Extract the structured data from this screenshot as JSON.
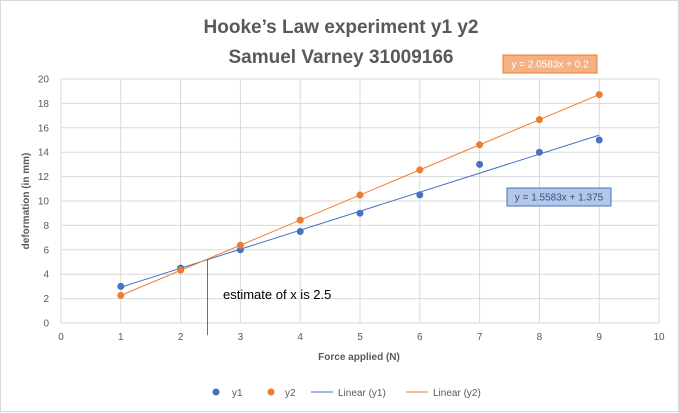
{
  "chart_data": {
    "type": "scatter",
    "title_lines": [
      "Hooke’s Law experiment y1 y2",
      "Samuel Varney 31009166"
    ],
    "xlabel": "Force applied (N)",
    "ylabel": "deformation (in mm)",
    "xlim": [
      0,
      10
    ],
    "ylim": [
      0,
      20
    ],
    "x_ticks": [
      0,
      1,
      2,
      3,
      4,
      5,
      6,
      7,
      8,
      9,
      10
    ],
    "y_ticks": [
      0,
      2,
      4,
      6,
      8,
      10,
      12,
      14,
      16,
      18,
      20
    ],
    "grid": true,
    "legend_position": "bottom",
    "x": [
      1,
      2,
      3,
      4,
      5,
      6,
      7,
      8,
      9
    ],
    "series": [
      {
        "name": "y1",
        "color": "#4472c4",
        "values": [
          3,
          4.5,
          6,
          7.5,
          9,
          10.5,
          13,
          14,
          15
        ],
        "trendline": {
          "name": "Linear (y1)",
          "slope": 1.5583,
          "intercept": 1.375,
          "x_range": [
            1,
            9
          ],
          "equation": "y = 1.5583x + 1.375",
          "label_style": {
            "background": "#b4c7e7",
            "border": "#4472c4",
            "text": "#2f4f8f"
          }
        }
      },
      {
        "name": "y2",
        "color": "#ed7d31",
        "values": [
          2.26,
          4.32,
          6.37,
          8.43,
          10.49,
          12.55,
          14.61,
          16.67,
          18.72
        ],
        "trendline": {
          "name": "Linear (y2)",
          "slope": 2.0583,
          "intercept": 0.2,
          "x_range": [
            1,
            9
          ],
          "equation": "y = 2.0583x + 0.2",
          "label_style": {
            "background": "#f4b183",
            "border": "#ed7d31",
            "text": "#ffffff"
          }
        }
      }
    ],
    "annotations": [
      {
        "text": "estimate of x is 2.5",
        "marker_x": 2.45,
        "marker_y_top": 5.2,
        "marker_y_bottom": -1
      }
    ]
  }
}
